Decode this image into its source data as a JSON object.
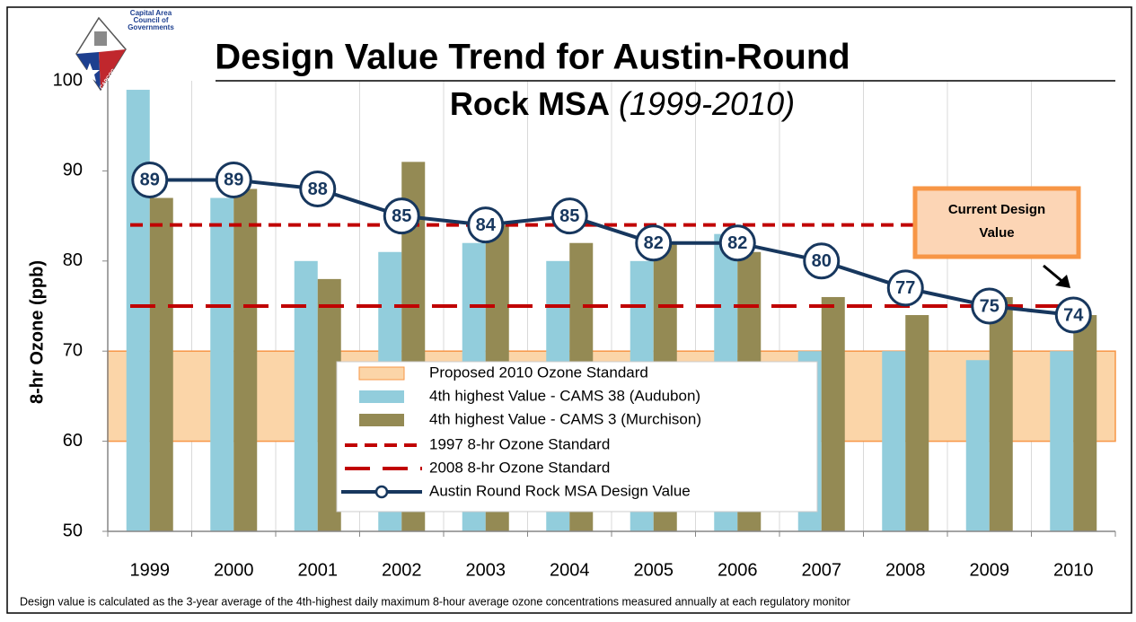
{
  "chart_data": {
    "type": "bar",
    "title": [
      "Design Value Trend for Austin-Round",
      "Rock MSA"
    ],
    "title_note": "(1999-2010)",
    "logo": [
      "Capital Area",
      "Council of",
      "Governments",
      "CAPCOG"
    ],
    "ylabel": "8-hr Ozone (ppb)",
    "categories": [
      "1999",
      "2000",
      "2001",
      "2002",
      "2003",
      "2004",
      "2005",
      "2006",
      "2007",
      "2008",
      "2009",
      "2010"
    ],
    "ylim": [
      50,
      100
    ],
    "yticks": [
      50,
      60,
      70,
      80,
      90,
      100
    ],
    "grid": true,
    "bands": [
      {
        "name": "Proposed 2010 Ozone Standard",
        "range": [
          60,
          70
        ],
        "color": "#fbd5a8",
        "edge": "#f79646"
      }
    ],
    "series": [
      {
        "name": "4th highest Value - CAMS 38 (Audubon)",
        "color": "#92cddc",
        "values": [
          99,
          87,
          80,
          81,
          82,
          80,
          80,
          83,
          70,
          70,
          69,
          70
        ]
      },
      {
        "name": "4th highest Value - CAMS 3 (Murchison)",
        "color": "#948a54",
        "values": [
          87,
          88,
          78,
          91,
          84,
          82,
          82,
          81,
          76,
          74,
          76,
          74
        ]
      }
    ],
    "reference_lines": [
      {
        "name": "1997 8-hr Ozone Standard",
        "value": 84,
        "color": "#c00000",
        "dash": "short"
      },
      {
        "name": "2008 8-hr Ozone Standard",
        "value": 75,
        "color": "#c00000",
        "dash": "long"
      }
    ],
    "line": {
      "name": "Austin Round Rock MSA Design Value",
      "color": "#17375e",
      "values": [
        89,
        89,
        88,
        85,
        84,
        85,
        82,
        82,
        80,
        77,
        75,
        74
      ]
    },
    "annotation": [
      "Current Design",
      "Value"
    ],
    "footnote": "Design value is calculated as the 3-year average of the 4th-highest daily maximum 8-hour average ozone concentrations measured annually at each regulatory monitor"
  }
}
